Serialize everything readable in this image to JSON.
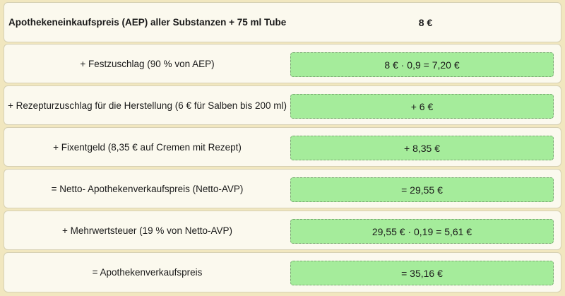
{
  "header": {
    "label": "Apothekeneinkaufspreis (AEP) aller Substanzen + 75 ml Tube",
    "value": "8 €"
  },
  "rows": [
    {
      "label": "+ Festzuschlag (90 % von AEP)",
      "value": "8 € · 0,9 = 7,20 €"
    },
    {
      "label": "+ Rezepturzuschlag für die Herstellung (6 € für Salben bis 200 ml)",
      "value": "+ 6 €"
    },
    {
      "label": "+ Fixentgeld (8,35 € auf Cremen mit Rezept)",
      "value": "+ 8,35 €"
    },
    {
      "label": "= Netto- Apothekenverkaufspreis (Netto-AVP)",
      "value": "= 29,55 €"
    },
    {
      "label": "+ Mehrwertsteuer (19 % von Netto-AVP)",
      "value": "29,55 € · 0,19 = 5,61 €"
    },
    {
      "label": "= Apothekenverkaufspreis",
      "value": "= 35,16 €"
    }
  ],
  "colors": {
    "page_background": "#f1e7bf",
    "row_background": "#fbf9ee",
    "value_box": "#a5ec9b"
  }
}
